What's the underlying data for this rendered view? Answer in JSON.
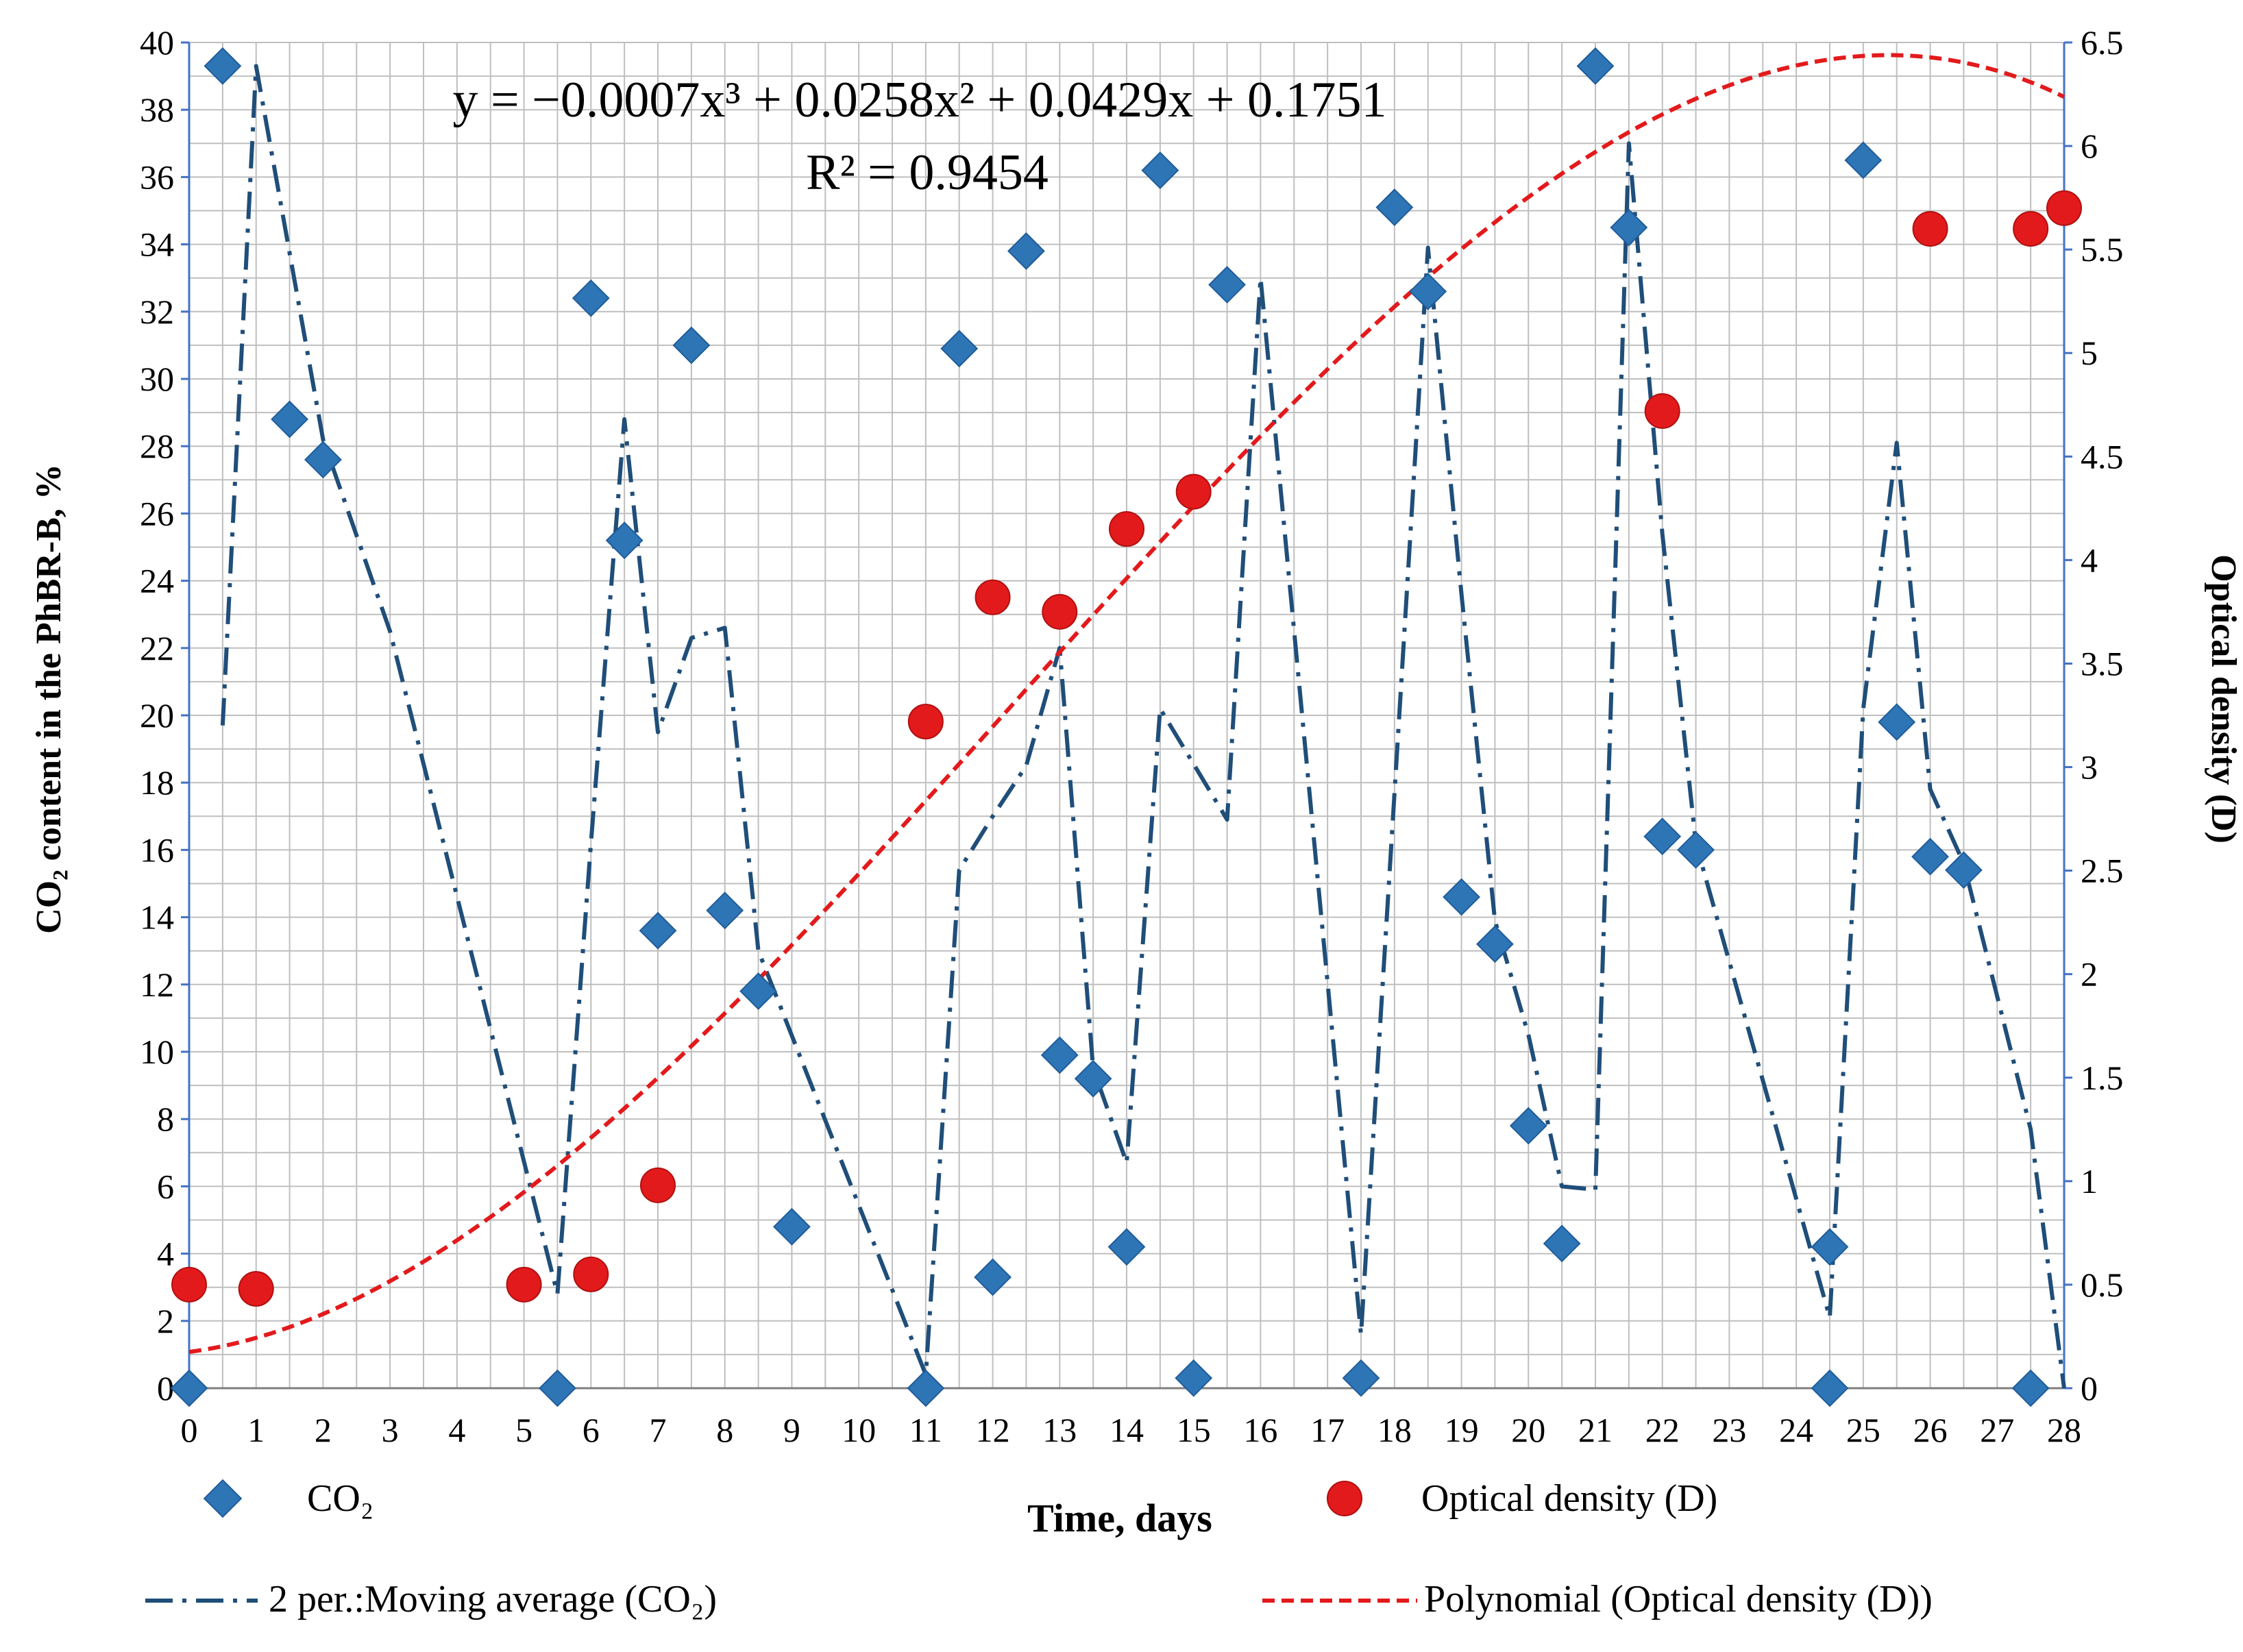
{
  "chart_data": {
    "type": "scatter",
    "xlabel": "Time, days",
    "ylabel_left": "CO₂ content in the PhBR-B, %",
    "ylabel_right": "Optical density (D)",
    "xlim": [
      0,
      28
    ],
    "ylim_left": [
      0,
      40
    ],
    "ylim_right": [
      0,
      6.5
    ],
    "x_ticks": [
      "0",
      "1",
      "2",
      "3",
      "4",
      "5",
      "6",
      "7",
      "8",
      "9",
      "10",
      "11",
      "12",
      "13",
      "14",
      "15",
      "16",
      "17",
      "18",
      "19",
      "20",
      "21",
      "22",
      "23",
      "24",
      "25",
      "26",
      "27",
      "28"
    ],
    "y_left_ticks": [
      "0",
      "2",
      "4",
      "6",
      "8",
      "10",
      "12",
      "14",
      "16",
      "18",
      "20",
      "22",
      "24",
      "26",
      "28",
      "30",
      "32",
      "34",
      "36",
      "38",
      "40"
    ],
    "y_right_ticks": [
      "0",
      "0.5",
      "1",
      "1.5",
      "2",
      "2.5",
      "3",
      "3.5",
      "4",
      "4.5",
      "5",
      "5.5",
      "6",
      "6.5"
    ],
    "grid": true,
    "trendline_equation": "y = −0.0007x³ + 0.0258x² + 0.0429x + 0.1751",
    "trendline_r2": "R² = 0.9454",
    "trendline_coefficients": [
      -0.0007,
      0.0258,
      0.0429,
      0.1751
    ],
    "series": [
      {
        "name": "CO₂",
        "axis": "left",
        "marker": "diamond",
        "color": "#2E75B6",
        "points": [
          [
            0,
            0
          ],
          [
            0.5,
            39.3
          ],
          [
            1.5,
            28.8
          ],
          [
            2,
            27.6
          ],
          [
            5.5,
            0
          ],
          [
            6,
            32.4
          ],
          [
            6.5,
            25.2
          ],
          [
            7,
            13.6
          ],
          [
            7.5,
            31
          ],
          [
            8,
            14.2
          ],
          [
            8.5,
            11.8
          ],
          [
            9,
            4.8
          ],
          [
            11,
            0
          ],
          [
            11.5,
            30.9
          ],
          [
            12,
            3.3
          ],
          [
            12.5,
            33.8
          ],
          [
            13,
            9.9
          ],
          [
            13.5,
            9.2
          ],
          [
            14,
            4.2
          ],
          [
            14.5,
            36.2
          ],
          [
            15,
            0.3
          ],
          [
            15.5,
            32.8
          ],
          [
            17.5,
            0.3
          ],
          [
            18,
            35.1
          ],
          [
            18.5,
            32.6
          ],
          [
            19,
            14.6
          ],
          [
            19.5,
            13.2
          ],
          [
            20,
            7.8
          ],
          [
            20.5,
            4.3
          ],
          [
            21,
            39.3
          ],
          [
            21.5,
            34.5
          ],
          [
            22,
            16.4
          ],
          [
            22.5,
            16
          ],
          [
            24.5,
            4.2
          ],
          [
            24.5,
            0
          ],
          [
            25,
            36.5
          ],
          [
            25.5,
            19.8
          ],
          [
            26,
            15.8
          ],
          [
            26.5,
            15.4
          ],
          [
            27.5,
            0
          ]
        ]
      },
      {
        "name": "Optical density (D)",
        "axis": "right",
        "marker": "circle",
        "color": "#E31A1C",
        "points": [
          [
            0,
            0.5
          ],
          [
            1,
            0.48
          ],
          [
            5,
            0.5
          ],
          [
            6,
            0.55
          ],
          [
            7,
            0.98
          ],
          [
            11,
            3.22
          ],
          [
            12,
            3.82
          ],
          [
            13,
            3.75
          ],
          [
            14,
            4.15
          ],
          [
            15,
            4.33
          ],
          [
            22,
            4.72
          ],
          [
            26,
            5.6
          ],
          [
            27.5,
            5.6
          ],
          [
            28,
            5.7
          ]
        ]
      },
      {
        "name": "2 per.:Moving average (CO₂)",
        "axis": "left",
        "style": "dash-dot",
        "color": "#1F4E79",
        "points": [
          [
            0.5,
            19.7
          ],
          [
            1,
            39.3
          ],
          [
            2,
            28.2
          ],
          [
            3,
            22.5
          ],
          [
            5.5,
            2.8
          ],
          [
            6,
            16.2
          ],
          [
            6.5,
            28.8
          ],
          [
            7,
            19.5
          ],
          [
            7.5,
            22.3
          ],
          [
            8,
            22.6
          ],
          [
            8.5,
            13
          ],
          [
            11,
            0.4
          ],
          [
            11.5,
            15.4
          ],
          [
            12,
            17
          ],
          [
            12.5,
            18.5
          ],
          [
            13,
            22
          ],
          [
            13.5,
            9.5
          ],
          [
            14,
            6.7
          ],
          [
            14.5,
            20.2
          ],
          [
            15.5,
            16.9
          ],
          [
            16,
            33
          ],
          [
            17.5,
            1.6
          ],
          [
            18,
            17.7
          ],
          [
            18.5,
            33.9
          ],
          [
            19,
            23.6
          ],
          [
            19.5,
            13.9
          ],
          [
            20,
            10.5
          ],
          [
            20.5,
            6
          ],
          [
            21,
            5.9
          ],
          [
            21.5,
            37
          ],
          [
            22,
            25.4
          ],
          [
            22.5,
            16.2
          ],
          [
            24.5,
            2.1
          ],
          [
            25,
            20.2
          ],
          [
            25.5,
            28.1
          ],
          [
            26,
            17.8
          ],
          [
            26.5,
            15.6
          ],
          [
            27.5,
            7.7
          ],
          [
            28,
            0
          ]
        ]
      },
      {
        "name": "Polynomial (Optical density (D))",
        "axis": "right",
        "style": "dashed",
        "color": "#E31A1C"
      }
    ]
  },
  "legend": {
    "co2": "CO₂",
    "od": "Optical density (D)",
    "moving_average": "2 per.:Moving average (CO₂)",
    "polynomial": "Polynomial (Optical density (D))"
  }
}
